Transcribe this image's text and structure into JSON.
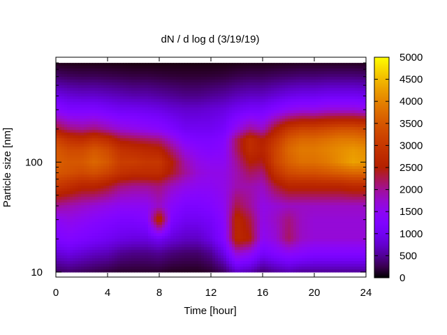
{
  "chart_data": {
    "type": "heatmap",
    "title": "dN / d log d (3/19/19)",
    "xlabel": "Time [hour]",
    "ylabel": "Particle size [nm]",
    "xlim": [
      0,
      24
    ],
    "ylim": [
      9,
      900
    ],
    "y_scale": "log",
    "x_ticks": [
      0,
      4,
      8,
      12,
      16,
      20,
      24
    ],
    "x_tick_labels": [
      "0",
      "4",
      "8",
      "12",
      "16",
      "20",
      "24"
    ],
    "y_ticks": [
      10,
      100
    ],
    "y_tick_labels": [
      "10",
      "100"
    ],
    "colorbar": {
      "range": [
        0,
        5000
      ],
      "ticks": [
        0,
        500,
        1000,
        1500,
        2000,
        2500,
        3000,
        3500,
        4000,
        4500,
        5000
      ],
      "tick_labels": [
        "0",
        "500",
        "1000",
        "1500",
        "2000",
        "2500",
        "3000",
        "3500",
        "4000",
        "4500",
        "5000"
      ],
      "colormap": "black-purple-red-orange-yellow"
    },
    "grid": false,
    "data_extent": {
      "x": [
        0,
        24
      ],
      "y": [
        10,
        800
      ]
    },
    "time_hours": [
      0,
      1,
      2,
      3,
      4,
      5,
      6,
      7,
      8,
      9,
      10,
      11,
      12,
      13,
      14,
      15,
      16,
      17,
      18,
      19,
      20,
      21,
      22,
      23,
      24
    ],
    "particle_size_nm": [
      10,
      15,
      20,
      30,
      40,
      60,
      80,
      100,
      130,
      160,
      200,
      300,
      400,
      600,
      800
    ],
    "values": [
      [
        300,
        350,
        300,
        250,
        200,
        150,
        150,
        150,
        150,
        100,
        100,
        100,
        150,
        300,
        700,
        600,
        350,
        500,
        600,
        500,
        500,
        500,
        500,
        500,
        500
      ],
      [
        800,
        900,
        800,
        700,
        650,
        500,
        450,
        450,
        500,
        400,
        350,
        350,
        500,
        900,
        1800,
        1600,
        1100,
        1300,
        1500,
        1400,
        1300,
        1300,
        1300,
        1300,
        1300
      ],
      [
        1200,
        1300,
        1200,
        1100,
        1000,
        900,
        850,
        850,
        1000,
        800,
        700,
        700,
        900,
        1300,
        2700,
        2500,
        1500,
        1700,
        2200,
        1800,
        1700,
        1700,
        1700,
        1700,
        1700
      ],
      [
        1500,
        1600,
        1500,
        1400,
        1300,
        1200,
        1200,
        1300,
        2800,
        1200,
        1000,
        1000,
        1100,
        1400,
        2700,
        2300,
        1600,
        1800,
        2100,
        1800,
        1700,
        1700,
        1700,
        1700,
        1700
      ],
      [
        2000,
        1900,
        1800,
        1700,
        1600,
        1500,
        1500,
        1500,
        1800,
        1400,
        1200,
        1200,
        1300,
        1500,
        2300,
        2000,
        1600,
        1700,
        1800,
        1800,
        1800,
        1800,
        1800,
        1800,
        1800
      ],
      [
        3000,
        2800,
        2600,
        2600,
        2400,
        2100,
        2000,
        2000,
        2100,
        1800,
        1600,
        1500,
        1500,
        1600,
        1900,
        1900,
        1800,
        2300,
        2600,
        2600,
        2600,
        2600,
        2600,
        2700,
        2700
      ],
      [
        3500,
        3400,
        3300,
        3400,
        3200,
        2900,
        2800,
        2800,
        2800,
        2400,
        2000,
        1700,
        1600,
        1600,
        1900,
        2200,
        2100,
        2900,
        3300,
        3400,
        3400,
        3500,
        3600,
        3700,
        3700
      ],
      [
        3600,
        3500,
        3500,
        3700,
        3500,
        3100,
        3100,
        3000,
        3000,
        2500,
        1900,
        1600,
        1500,
        1500,
        2000,
        2500,
        2400,
        3200,
        3600,
        3800,
        3800,
        3900,
        4100,
        4300,
        4200
      ],
      [
        3500,
        3300,
        3300,
        3500,
        3300,
        2900,
        2800,
        2700,
        2600,
        2100,
        1600,
        1400,
        1300,
        1400,
        2200,
        2800,
        2600,
        3200,
        3700,
        3900,
        3900,
        4000,
        4100,
        4200,
        4100
      ],
      [
        3200,
        2900,
        2800,
        3000,
        2800,
        2400,
        2300,
        2200,
        2100,
        1700,
        1300,
        1200,
        1200,
        1300,
        2200,
        2800,
        2500,
        3000,
        3500,
        3700,
        3700,
        3800,
        3900,
        3900,
        3800
      ],
      [
        2400,
        2100,
        2000,
        2100,
        1900,
        1700,
        1600,
        1500,
        1400,
        1200,
        1000,
        1000,
        1000,
        1100,
        1600,
        2000,
        1800,
        2500,
        3000,
        3200,
        3200,
        3300,
        3400,
        3400,
        3300
      ],
      [
        1400,
        1200,
        1200,
        1200,
        1100,
        1000,
        1000,
        950,
        900,
        800,
        750,
        750,
        800,
        850,
        1000,
        1100,
        1100,
        1300,
        1500,
        1600,
        1600,
        1700,
        1700,
        1700,
        1600
      ],
      [
        900,
        800,
        750,
        750,
        700,
        650,
        600,
        600,
        550,
        500,
        450,
        450,
        500,
        550,
        650,
        700,
        700,
        800,
        900,
        950,
        950,
        1000,
        1000,
        1000,
        950
      ],
      [
        350,
        300,
        280,
        280,
        260,
        240,
        220,
        220,
        200,
        180,
        170,
        170,
        180,
        200,
        250,
        280,
        280,
        320,
        350,
        380,
        380,
        400,
        400,
        400,
        380
      ],
      [
        80,
        70,
        60,
        60,
        55,
        50,
        40,
        40,
        40,
        45,
        45,
        45,
        45,
        50,
        60,
        70,
        70,
        80,
        90,
        100,
        100,
        100,
        100,
        100,
        90
      ]
    ]
  }
}
